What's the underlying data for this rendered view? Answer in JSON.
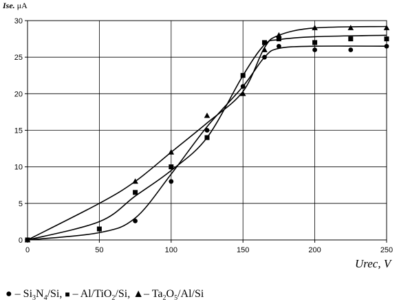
{
  "chart_data": {
    "type": "line",
    "ylabel_prefix": "Ise.",
    "ylabel_unit": "μA",
    "xlabel": "Urec, V",
    "xlim": [
      0,
      250
    ],
    "ylim": [
      0,
      30
    ],
    "xticks": [
      0,
      50,
      100,
      150,
      200,
      250
    ],
    "yticks": [
      0,
      5,
      10,
      15,
      20,
      25,
      30
    ],
    "grid": true,
    "series": [
      {
        "marker": "circle",
        "points": [
          [
            0,
            0
          ],
          [
            75,
            2.6
          ],
          [
            100,
            8
          ],
          [
            125,
            15
          ],
          [
            150,
            21
          ],
          [
            165,
            25
          ],
          [
            175,
            26.5
          ],
          [
            200,
            26
          ],
          [
            225,
            26
          ],
          [
            250,
            26.5
          ]
        ],
        "curve": [
          [
            0,
            0
          ],
          [
            50,
            1
          ],
          [
            75,
            3
          ],
          [
            100,
            9
          ],
          [
            125,
            15.5
          ],
          [
            150,
            21
          ],
          [
            165,
            25
          ],
          [
            175,
            26.2
          ],
          [
            200,
            26.5
          ],
          [
            250,
            26.5
          ]
        ]
      },
      {
        "marker": "square",
        "points": [
          [
            0,
            0
          ],
          [
            50,
            1.5
          ],
          [
            75,
            6.5
          ],
          [
            100,
            10
          ],
          [
            125,
            14
          ],
          [
            150,
            22.5
          ],
          [
            165,
            27
          ],
          [
            175,
            27.5
          ],
          [
            200,
            27
          ],
          [
            225,
            27.5
          ],
          [
            250,
            27.5
          ]
        ],
        "curve": [
          [
            0,
            0
          ],
          [
            50,
            2.5
          ],
          [
            75,
            6
          ],
          [
            100,
            9.5
          ],
          [
            125,
            14
          ],
          [
            150,
            22.5
          ],
          [
            165,
            26.7
          ],
          [
            175,
            27.4
          ],
          [
            200,
            27.8
          ],
          [
            250,
            28
          ]
        ]
      },
      {
        "marker": "triangle",
        "points": [
          [
            0,
            0
          ],
          [
            75,
            8
          ],
          [
            100,
            12
          ],
          [
            125,
            17
          ],
          [
            150,
            20
          ],
          [
            165,
            26
          ],
          [
            175,
            28
          ],
          [
            200,
            29
          ],
          [
            225,
            29
          ],
          [
            250,
            29
          ]
        ],
        "curve": [
          [
            0,
            0
          ],
          [
            50,
            5
          ],
          [
            75,
            8
          ],
          [
            100,
            12
          ],
          [
            125,
            16
          ],
          [
            150,
            20.3
          ],
          [
            165,
            26.3
          ],
          [
            175,
            28
          ],
          [
            200,
            29
          ],
          [
            250,
            29.2
          ]
        ]
      }
    ]
  },
  "legend": {
    "item1": {
      "material": "Si",
      "sub1": "3",
      "mid": "N",
      "sub2": "4",
      "tail": "/Si,"
    },
    "item2": {
      "material": "Al/TiO",
      "sub1": "2",
      "tail": "/Si,"
    },
    "item3": {
      "material": "Ta",
      "sub1": "2",
      "mid": "O",
      "sub2": "5",
      "tail": "/Al/Si"
    },
    "symbols": {
      "circle": "●",
      "square": "■",
      "triangle": "▲",
      "dash": "–"
    }
  }
}
